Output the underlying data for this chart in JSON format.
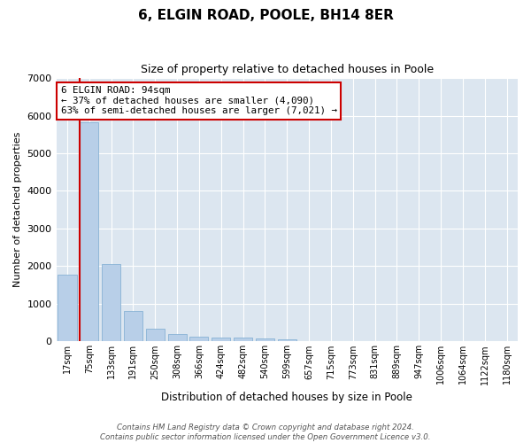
{
  "title1": "6, ELGIN ROAD, POOLE, BH14 8ER",
  "title2": "Size of property relative to detached houses in Poole",
  "xlabel": "Distribution of detached houses by size in Poole",
  "ylabel": "Number of detached properties",
  "categories": [
    "17sqm",
    "75sqm",
    "133sqm",
    "191sqm",
    "250sqm",
    "308sqm",
    "366sqm",
    "424sqm",
    "482sqm",
    "540sqm",
    "599sqm",
    "657sqm",
    "715sqm",
    "773sqm",
    "831sqm",
    "889sqm",
    "947sqm",
    "1006sqm",
    "1064sqm",
    "1122sqm",
    "1180sqm"
  ],
  "values": [
    1780,
    5820,
    2060,
    820,
    340,
    190,
    120,
    110,
    100,
    75,
    60,
    0,
    0,
    0,
    0,
    0,
    0,
    0,
    0,
    0,
    0
  ],
  "bar_color": "#b8cfe8",
  "bar_edge_color": "#7aaad0",
  "vline_color": "#cc0000",
  "vline_x_index": 1,
  "annotation_text": "6 ELGIN ROAD: 94sqm\n← 37% of detached houses are smaller (4,090)\n63% of semi-detached houses are larger (7,021) →",
  "annotation_box_facecolor": "#ffffff",
  "annotation_box_edgecolor": "#cc0000",
  "ylim": [
    0,
    7000
  ],
  "yticks": [
    0,
    1000,
    2000,
    3000,
    4000,
    5000,
    6000,
    7000
  ],
  "background_color": "#dce6f0",
  "grid_color": "#ffffff",
  "footnote": "Contains HM Land Registry data © Crown copyright and database right 2024.\nContains public sector information licensed under the Open Government Licence v3.0."
}
